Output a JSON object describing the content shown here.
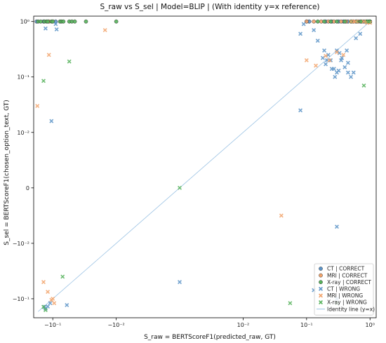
{
  "chart_data": {
    "type": "scatter",
    "title": "S_raw vs S_sel | Model=BLIP | (With identity y=x reference)",
    "xlabel": "S_raw = BERTScoreF1(predicted_raw, GT)",
    "ylabel": "S_sel = BERTScoreF1(chosen_option_text, GT)",
    "xscale": "symlog",
    "yscale": "symlog",
    "linthresh": 0.01,
    "xlim": [
      -0.2,
      1.25
    ],
    "ylim": [
      -0.22,
      1.25
    ],
    "x_tick_labels": [
      {
        "value": -0.1,
        "label": "−10⁻¹"
      },
      {
        "value": -0.01,
        "label": "−10⁻²"
      },
      {
        "value": 0.01,
        "label": "10⁻²"
      },
      {
        "value": 0.1,
        "label": "10⁻¹"
      },
      {
        "value": 1,
        "label": "10⁰"
      }
    ],
    "y_tick_labels": [
      {
        "value": 1,
        "label": "10⁰"
      },
      {
        "value": 0.1,
        "label": "10⁻¹"
      },
      {
        "value": 0.01,
        "label": "10⁻²"
      },
      {
        "value": 0,
        "label": "0"
      },
      {
        "value": -0.01,
        "label": "−10⁻²"
      },
      {
        "value": -0.1,
        "label": "−10⁻¹"
      }
    ],
    "legend_position": "bottom-right",
    "colors": {
      "CT": "#5b93c7",
      "MRI": "#f2a36b",
      "X-ray": "#55b25a",
      "identity": "#9cc3e4",
      "axes": "#000000"
    },
    "identity_line": {
      "name": "Identity line (y=x)",
      "x": [
        -0.17,
        1
      ],
      "y": [
        -0.17,
        1
      ]
    },
    "series": [
      {
        "name": "CT | CORRECT",
        "modality": "CT",
        "marker": "circle",
        "points": [
          [
            -0.18,
            1.0
          ],
          [
            -0.14,
            1.0
          ],
          [
            -0.09,
            1.0
          ],
          [
            0.1,
            1.0
          ],
          [
            0.11,
            1.0
          ],
          [
            0.2,
            1.0
          ],
          [
            0.25,
            1.0
          ],
          [
            0.32,
            1.0
          ],
          [
            0.38,
            1.0
          ],
          [
            0.45,
            1.0
          ],
          [
            0.52,
            1.0
          ],
          [
            0.6,
            1.0
          ],
          [
            0.7,
            1.0
          ],
          [
            0.8,
            1.0
          ],
          [
            0.9,
            1.0
          ],
          [
            0.97,
            1.0
          ],
          [
            1.0,
            1.0
          ]
        ]
      },
      {
        "name": "MRI | CORRECT",
        "modality": "MRI",
        "marker": "circle",
        "points": [
          [
            -0.115,
            1.0
          ],
          [
            -0.1,
            1.0
          ],
          [
            0.1,
            1.0
          ],
          [
            0.13,
            1.0
          ],
          [
            0.17,
            1.0
          ],
          [
            0.22,
            1.0
          ],
          [
            0.27,
            1.0
          ],
          [
            0.35,
            1.0
          ],
          [
            0.42,
            1.0
          ],
          [
            0.55,
            1.0
          ],
          [
            0.65,
            1.0
          ],
          [
            0.75,
            1.0
          ],
          [
            0.88,
            1.0
          ],
          [
            1.0,
            1.0
          ]
        ]
      },
      {
        "name": "X-ray | CORRECT",
        "modality": "X-ray",
        "marker": "circle",
        "points": [
          [
            -0.17,
            1.0
          ],
          [
            -0.155,
            1.0
          ],
          [
            -0.135,
            1.0
          ],
          [
            -0.125,
            1.0
          ],
          [
            -0.12,
            1.0
          ],
          [
            -0.105,
            1.0
          ],
          [
            -0.1,
            1.0
          ],
          [
            -0.077,
            1.0
          ],
          [
            -0.073,
            1.0
          ],
          [
            -0.068,
            1.0
          ],
          [
            -0.055,
            1.0
          ],
          [
            -0.05,
            1.0
          ],
          [
            -0.045,
            1.0
          ],
          [
            -0.03,
            1.0
          ],
          [
            -0.01,
            1.0
          ],
          [
            0.15,
            1.0
          ],
          [
            0.19,
            1.0
          ],
          [
            0.24,
            1.0
          ],
          [
            0.3,
            1.0
          ],
          [
            0.4,
            1.0
          ],
          [
            0.5,
            1.0
          ],
          [
            0.62,
            1.0
          ],
          [
            0.72,
            1.0
          ],
          [
            0.85,
            1.0
          ],
          [
            0.93,
            1.0
          ],
          [
            1.0,
            1.0
          ],
          [
            1.0,
            0.98
          ]
        ]
      },
      {
        "name": "CT | WRONG",
        "modality": "CT",
        "marker": "x",
        "points": [
          [
            -0.13,
            0.75
          ],
          [
            -0.09,
            0.9
          ],
          [
            -0.087,
            0.72
          ],
          [
            -0.105,
            0.016
          ],
          [
            0.09,
            0.9
          ],
          [
            0.08,
            0.6
          ],
          [
            0.13,
            0.7
          ],
          [
            0.15,
            0.45
          ],
          [
            0.19,
            0.3
          ],
          [
            0.22,
            0.25
          ],
          [
            0.24,
            0.2
          ],
          [
            0.2,
            0.17
          ],
          [
            0.27,
            0.14
          ],
          [
            0.3,
            0.3
          ],
          [
            0.33,
            0.27
          ],
          [
            0.36,
            0.22
          ],
          [
            0.4,
            0.15
          ],
          [
            0.45,
            0.12
          ],
          [
            0.5,
            0.1
          ],
          [
            0.55,
            0.12
          ],
          [
            0.6,
            0.5
          ],
          [
            0.7,
            0.6
          ],
          [
            0.3,
            0.12
          ],
          [
            0.32,
            0.13
          ],
          [
            0.25,
            0.14
          ],
          [
            0.45,
            0.18
          ],
          [
            0.35,
            0.2
          ],
          [
            0.28,
            0.1
          ],
          [
            0.43,
            0.3
          ],
          [
            0.21,
            0.2
          ],
          [
            0.18,
            0.22
          ],
          [
            0.08,
            0.025
          ],
          [
            0.0,
            -0.05
          ],
          [
            0.13,
            -0.07
          ],
          [
            0.3,
            -0.007
          ],
          [
            -0.06,
            -0.13
          ],
          [
            -0.11,
            -0.12
          ],
          [
            -0.12,
            -0.138
          ],
          [
            -0.135,
            -0.14
          ],
          [
            -0.13,
            -0.15
          ],
          [
            0.3,
            -0.1
          ]
        ]
      },
      {
        "name": "MRI | WRONG",
        "modality": "MRI",
        "marker": "x",
        "points": [
          [
            -0.175,
            0.03
          ],
          [
            -0.115,
            0.25
          ],
          [
            -0.015,
            0.7
          ],
          [
            0.1,
            0.2
          ],
          [
            0.14,
            0.16
          ],
          [
            0.2,
            0.24
          ],
          [
            0.23,
            0.2
          ],
          [
            0.3,
            0.28
          ],
          [
            0.5,
            1.0
          ],
          [
            0.6,
            1.0
          ],
          [
            0.8,
            1.0
          ],
          [
            0.9,
            0.95
          ],
          [
            1.0,
            0.95
          ],
          [
            -0.14,
            -0.05
          ],
          [
            -0.12,
            -0.075
          ],
          [
            -0.1,
            -0.1
          ],
          [
            -0.105,
            -0.105
          ],
          [
            -0.095,
            -0.12
          ],
          [
            0.04,
            -0.005
          ],
          [
            0.38,
            0.25
          ]
        ]
      },
      {
        "name": "X-ray | WRONG",
        "modality": "X-ray",
        "marker": "x",
        "points": [
          [
            -0.14,
            0.085
          ],
          [
            -0.055,
            0.19
          ],
          [
            0.0,
            0.0
          ],
          [
            0.8,
            0.07
          ],
          [
            0.95,
            1.0
          ],
          [
            -0.07,
            -0.04
          ],
          [
            -0.14,
            -0.14
          ],
          [
            -0.13,
            -0.16
          ],
          [
            0.055,
            -0.12
          ],
          [
            0.3,
            -0.12
          ]
        ]
      }
    ]
  }
}
